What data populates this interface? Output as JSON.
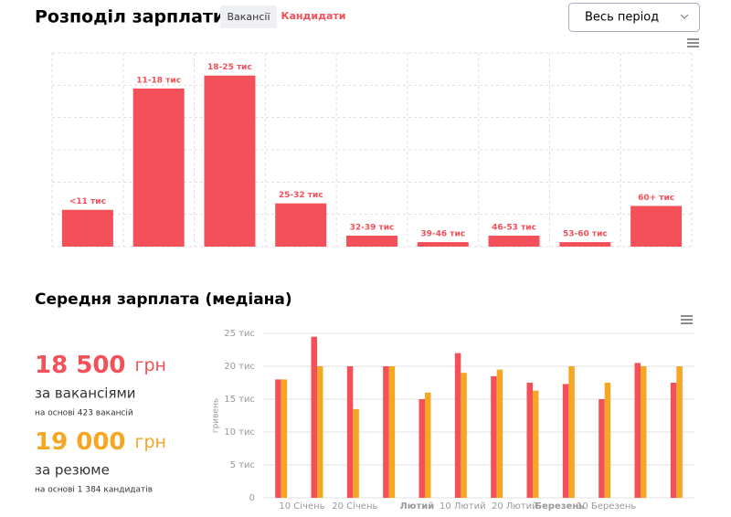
{
  "header": {
    "title": "Розподіл зарплати",
    "tabs": [
      "Вакансії",
      "Кандидати"
    ],
    "period": "Весь період"
  },
  "distribution": {
    "chart_data": {
      "type": "bar",
      "color": "#f4505a",
      "ylim": [
        0,
        6
      ],
      "categories": [
        "<11 тис",
        "11-18 тис",
        "18-25 тис",
        "25-32 тис",
        "32-39 тис",
        "39-46 тис",
        "46-53 тис",
        "53-60 тис",
        "60+ тис"
      ],
      "values": [
        1.14,
        4.9,
        5.3,
        1.34,
        0.34,
        0.14,
        0.34,
        0.14,
        1.26
      ]
    }
  },
  "median": {
    "title": "Середня зарплата (медіана)",
    "stats": [
      {
        "value": "18 500",
        "unit": "грн",
        "label": "за вакансіями",
        "note": "на основі 423 вакансій",
        "color": "#f4505a"
      },
      {
        "value": "19 000",
        "unit": "грн",
        "label": "за резюме",
        "note": "на основі 1 384 кандидатів",
        "color": "#f5a623"
      }
    ],
    "chart_data": {
      "type": "grouped-bar",
      "y_label": "гривень",
      "ylim": [
        0,
        25000
      ],
      "yticks": [
        0,
        {
          "value": 5000,
          "label": "5 тис"
        },
        {
          "value": 10000,
          "label": "10 тис"
        },
        {
          "value": 15000,
          "label": "15 тис"
        },
        {
          "value": 20000,
          "label": "20 тис"
        },
        {
          "value": 25000,
          "label": "25 тис"
        }
      ],
      "categories": [
        null,
        null,
        null,
        null,
        null,
        null,
        null,
        null,
        null,
        null,
        null,
        null
      ],
      "xticks": [
        {
          "value": 0.58,
          "label": "10 Січень"
        },
        {
          "value": 2.05,
          "label": "20 Січень"
        },
        {
          "value": 3.78,
          "label": "Лютий",
          "bold": true
        },
        {
          "value": 5.05,
          "label": "10 Лютий"
        },
        {
          "value": 6.5,
          "label": "20 Лютий"
        },
        {
          "value": 7.75,
          "label": "Березень",
          "bold": true
        },
        {
          "value": 9.05,
          "label": "10 Березень"
        }
      ],
      "series": [
        {
          "color": "#f4505a",
          "values": [
            18000,
            24500,
            20000,
            20000,
            15000,
            22000,
            18500,
            17500,
            17300,
            15000,
            20500,
            17500
          ]
        },
        {
          "color": "#f5a623",
          "values": [
            18000,
            20000,
            13500,
            20000,
            16000,
            19000,
            19500,
            16300,
            20000,
            17500,
            20000,
            20000
          ]
        }
      ]
    }
  }
}
